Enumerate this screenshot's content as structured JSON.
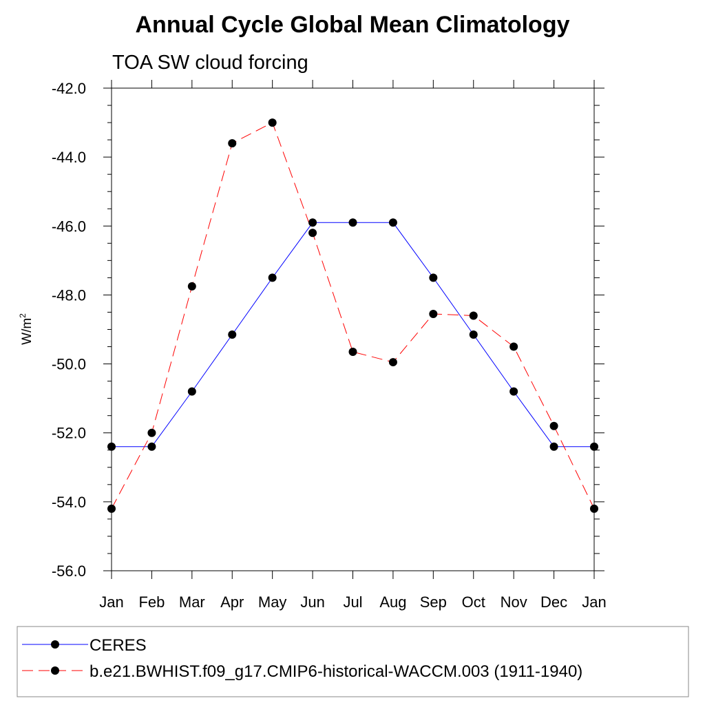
{
  "chart_data": {
    "type": "line",
    "title": "Annual Cycle Global Mean Climatology",
    "subtitle": "TOA SW cloud forcing",
    "xlabel": "",
    "ylabel": "W/m",
    "ylabel_superscript": "2",
    "categories": [
      "Jan",
      "Feb",
      "Mar",
      "Apr",
      "May",
      "Jun",
      "Jul",
      "Aug",
      "Sep",
      "Oct",
      "Nov",
      "Dec",
      "Jan"
    ],
    "ylim": [
      -56.0,
      -42.0
    ],
    "yticks": [
      -56.0,
      -54.0,
      -52.0,
      -50.0,
      -48.0,
      -46.0,
      -44.0,
      -42.0
    ],
    "ytick_labels": [
      "-56.0",
      "-54.0",
      "-52.0",
      "-50.0",
      "-48.0",
      "-46.0",
      "-44.0",
      "-42.0"
    ],
    "grid": false,
    "legend_position": "bottom",
    "series": [
      {
        "name": "CERES",
        "color": "#0000ff",
        "dash": "solid",
        "values": [
          -52.4,
          -52.4,
          -50.8,
          -49.15,
          -47.5,
          -45.9,
          -45.9,
          -45.9,
          -47.5,
          -49.15,
          -50.8,
          -52.4,
          -52.4
        ]
      },
      {
        "name": "b.e21.BWHIST.f09_g17.CMIP6-historical-WACCM.003 (1911-1940)",
        "color": "#ff0000",
        "dash": "dashed",
        "values": [
          -54.2,
          -52.0,
          -47.75,
          -43.6,
          -43.0,
          -46.2,
          -49.65,
          -49.95,
          -48.55,
          -48.6,
          -49.5,
          -51.8,
          -54.2
        ]
      }
    ]
  }
}
